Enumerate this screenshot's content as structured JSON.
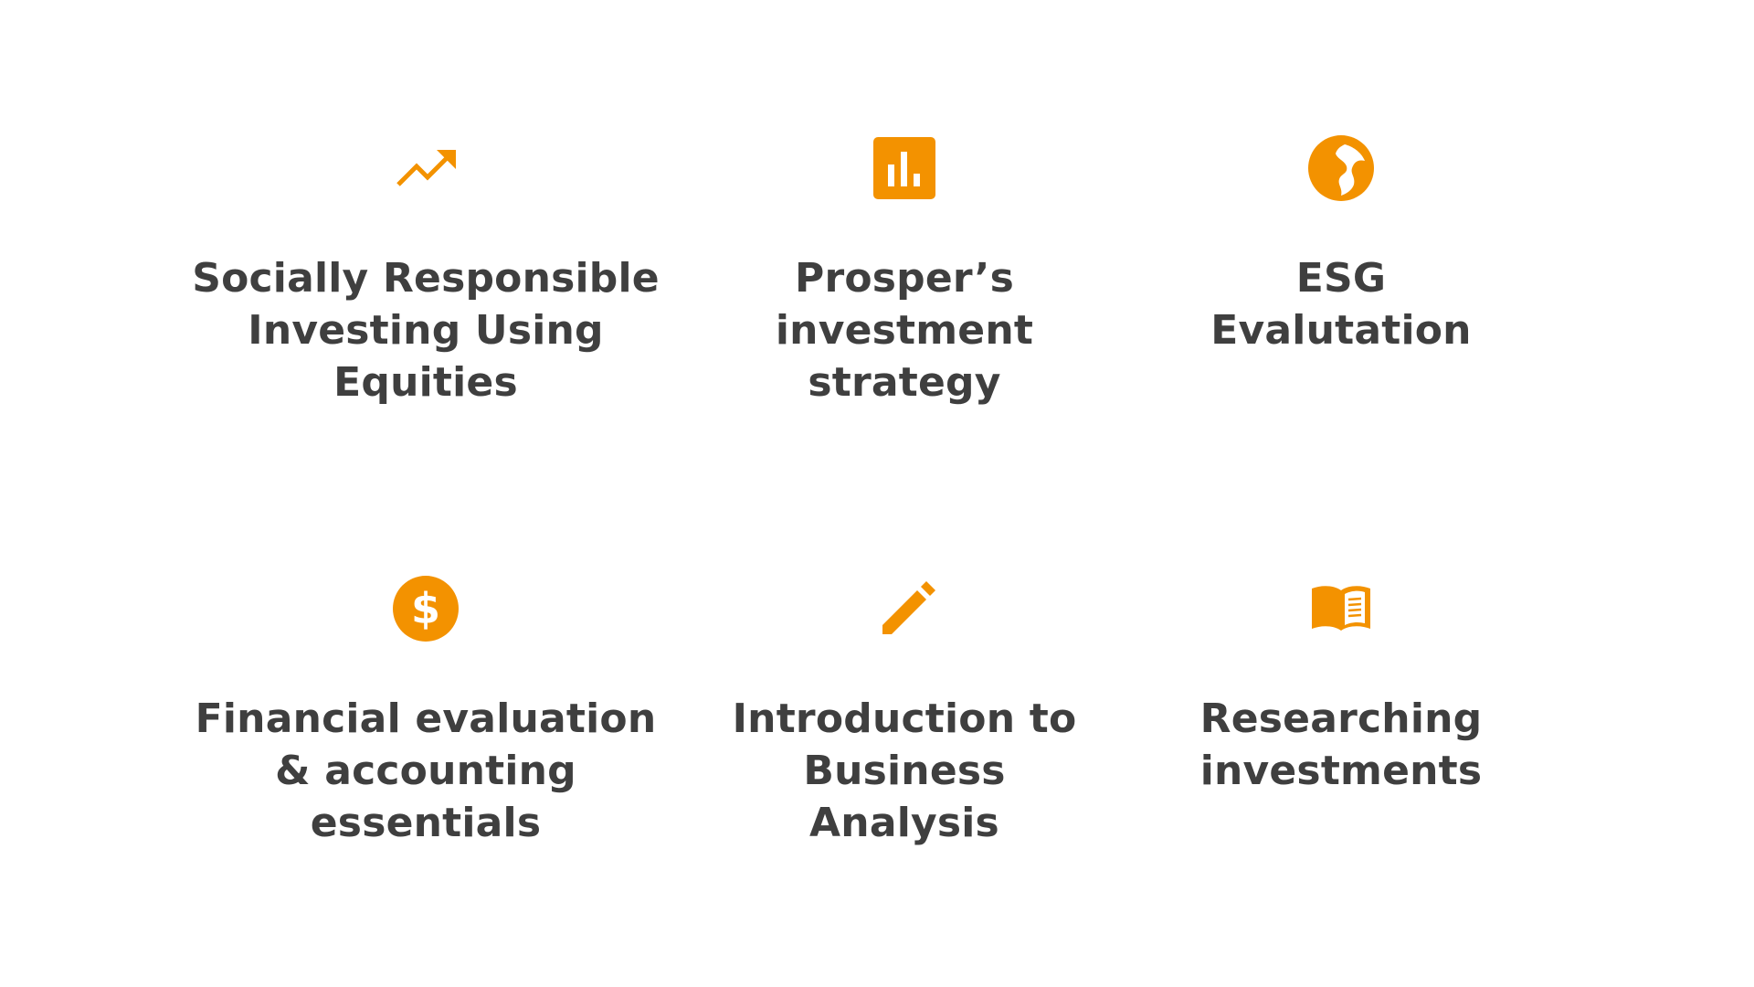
{
  "theme": {
    "accent": "#F39200",
    "text": "#3F3F3F",
    "background": "#FFFFFF"
  },
  "cards": [
    {
      "icon": "trending-up-icon",
      "label": "Socially Responsible\nInvesting Using\nEquities"
    },
    {
      "icon": "bar-chart-icon",
      "label": "Prosper’s\ninvestment\nstrategy"
    },
    {
      "icon": "globe-icon",
      "label": "ESG\nEvalutation"
    },
    {
      "icon": "dollar-icon",
      "label": "Financial evaluation\n& accounting\nessentials"
    },
    {
      "icon": "pencil-icon",
      "label": "Introduction to\nBusiness\nAnalysis"
    },
    {
      "icon": "book-icon",
      "label": "Researching\ninvestments"
    }
  ]
}
